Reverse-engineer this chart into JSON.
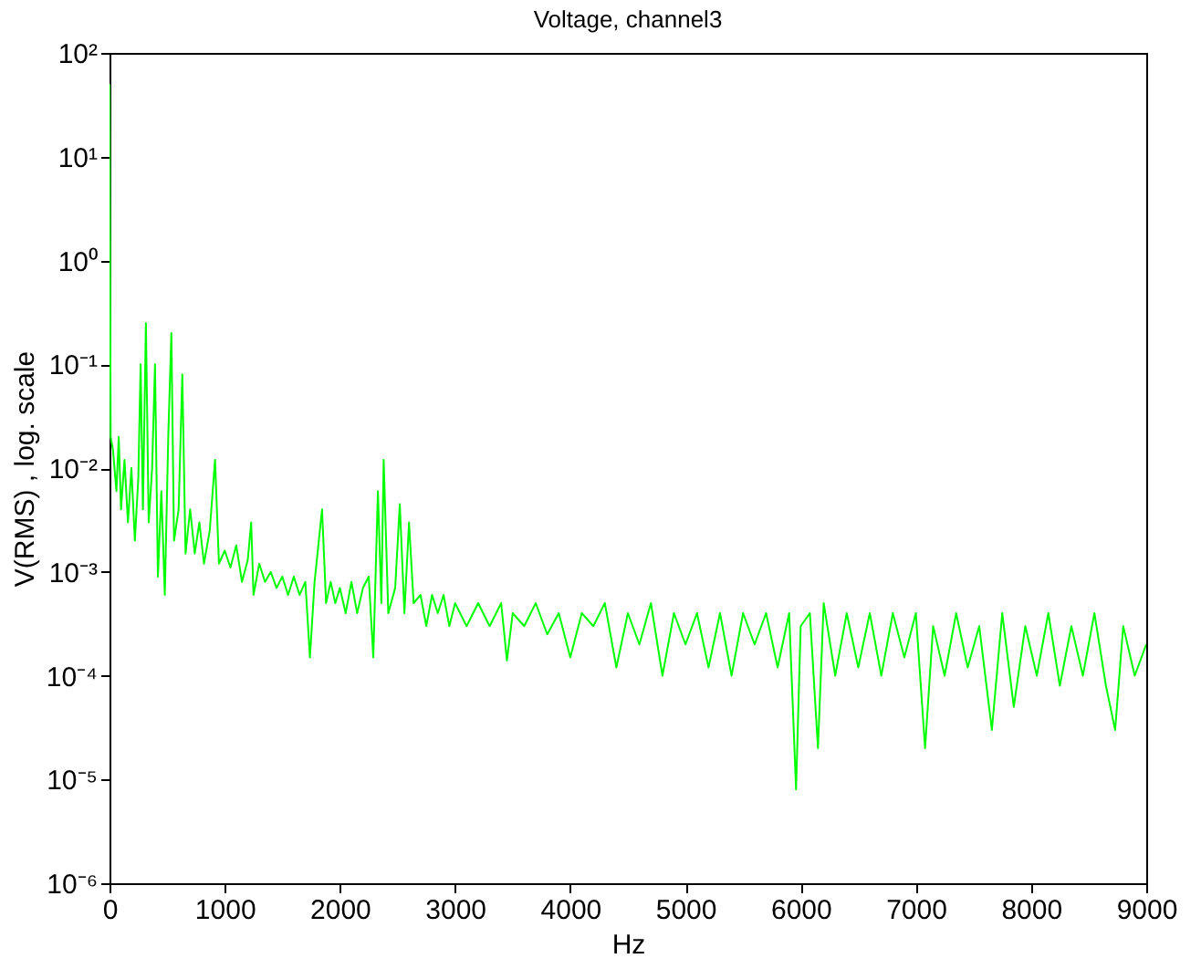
{
  "chart_data": {
    "type": "line",
    "title": "Voltage, channel3",
    "xlabel": "Hz",
    "ylabel": "V(RMS) , log. scale",
    "log": "y",
    "grid": false,
    "marker": "none",
    "line_style": "solid",
    "xlim": [
      0,
      9000
    ],
    "xticks": [
      0,
      1000,
      2000,
      3000,
      4000,
      5000,
      6000,
      7000,
      8000,
      9000
    ],
    "ylim": [
      1e-06,
      100
    ],
    "yticks": [
      {
        "value": 1e-06,
        "label": "10⁻⁶"
      },
      {
        "value": 1e-05,
        "label": "10⁻⁵"
      },
      {
        "value": 0.0001,
        "label": "10⁻⁴"
      },
      {
        "value": 0.001,
        "label": "10⁻³"
      },
      {
        "value": 0.01,
        "label": "10⁻²"
      },
      {
        "value": 0.1,
        "label": "10⁻¹"
      },
      {
        "value": 1,
        "label": "10⁰"
      },
      {
        "value": 10,
        "label": "10¹"
      },
      {
        "value": 100,
        "label": "10²"
      }
    ],
    "x": [
      0,
      10,
      30,
      60,
      80,
      100,
      130,
      160,
      190,
      220,
      250,
      270,
      290,
      316,
      340,
      370,
      395,
      420,
      450,
      480,
      510,
      537,
      560,
      600,
      632,
      660,
      700,
      740,
      780,
      820,
      870,
      916,
      950,
      1000,
      1050,
      1100,
      1150,
      1200,
      1230,
      1250,
      1300,
      1350,
      1400,
      1450,
      1500,
      1550,
      1600,
      1650,
      1700,
      1740,
      1780,
      1845,
      1880,
      1920,
      1960,
      2000,
      2050,
      2100,
      2150,
      2200,
      2250,
      2290,
      2330,
      2360,
      2380,
      2420,
      2480,
      2520,
      2560,
      2600,
      2640,
      2700,
      2750,
      2800,
      2850,
      2900,
      2950,
      3000,
      3100,
      3200,
      3300,
      3400,
      3450,
      3500,
      3600,
      3700,
      3800,
      3900,
      4000,
      4100,
      4200,
      4300,
      4400,
      4500,
      4600,
      4700,
      4800,
      4900,
      5000,
      5100,
      5200,
      5300,
      5400,
      5500,
      5600,
      5700,
      5800,
      5900,
      5960,
      6000,
      6080,
      6150,
      6200,
      6300,
      6400,
      6500,
      6600,
      6700,
      6800,
      6900,
      7000,
      7080,
      7150,
      7250,
      7350,
      7450,
      7550,
      7660,
      7750,
      7850,
      7950,
      8050,
      8150,
      8250,
      8350,
      8450,
      8550,
      8650,
      8730,
      8800,
      8900,
      9000
    ],
    "series": [
      {
        "color": "#00ff00",
        "values": [
          50,
          0.02,
          0.015,
          0.006,
          0.02,
          0.004,
          0.012,
          0.003,
          0.01,
          0.002,
          0.008,
          0.1,
          0.004,
          0.25,
          0.003,
          0.01,
          0.1,
          0.0009,
          0.006,
          0.0006,
          0.02,
          0.2,
          0.002,
          0.004,
          0.08,
          0.0015,
          0.004,
          0.0015,
          0.003,
          0.0012,
          0.0025,
          0.012,
          0.0012,
          0.0016,
          0.0011,
          0.0018,
          0.0008,
          0.0013,
          0.003,
          0.0006,
          0.0012,
          0.0008,
          0.001,
          0.0007,
          0.0009,
          0.0006,
          0.0009,
          0.0006,
          0.0008,
          0.00015,
          0.0008,
          0.004,
          0.0005,
          0.0008,
          0.0005,
          0.0007,
          0.0004,
          0.0008,
          0.0004,
          0.0007,
          0.0009,
          0.00015,
          0.006,
          0.0005,
          0.012,
          0.0004,
          0.0007,
          0.0045,
          0.0004,
          0.003,
          0.0005,
          0.0006,
          0.0003,
          0.0006,
          0.0004,
          0.0006,
          0.0003,
          0.0005,
          0.0003,
          0.0005,
          0.0003,
          0.0005,
          0.00014,
          0.0004,
          0.0003,
          0.0005,
          0.00025,
          0.0004,
          0.00015,
          0.0004,
          0.0003,
          0.0005,
          0.00012,
          0.0004,
          0.0002,
          0.0005,
          0.0001,
          0.0004,
          0.0002,
          0.0004,
          0.00012,
          0.0004,
          0.0001,
          0.0004,
          0.0002,
          0.0004,
          0.00012,
          0.0004,
          8e-06,
          0.0003,
          0.0004,
          2e-05,
          0.0005,
          0.0001,
          0.0004,
          0.00012,
          0.0004,
          0.0001,
          0.0004,
          0.00015,
          0.0004,
          2e-05,
          0.0003,
          0.0001,
          0.0004,
          0.00012,
          0.0003,
          3e-05,
          0.0004,
          5e-05,
          0.0003,
          0.0001,
          0.0004,
          8e-05,
          0.0003,
          0.0001,
          0.0004,
          8e-05,
          3e-05,
          0.0003,
          0.0001,
          0.0002
        ]
      }
    ]
  }
}
